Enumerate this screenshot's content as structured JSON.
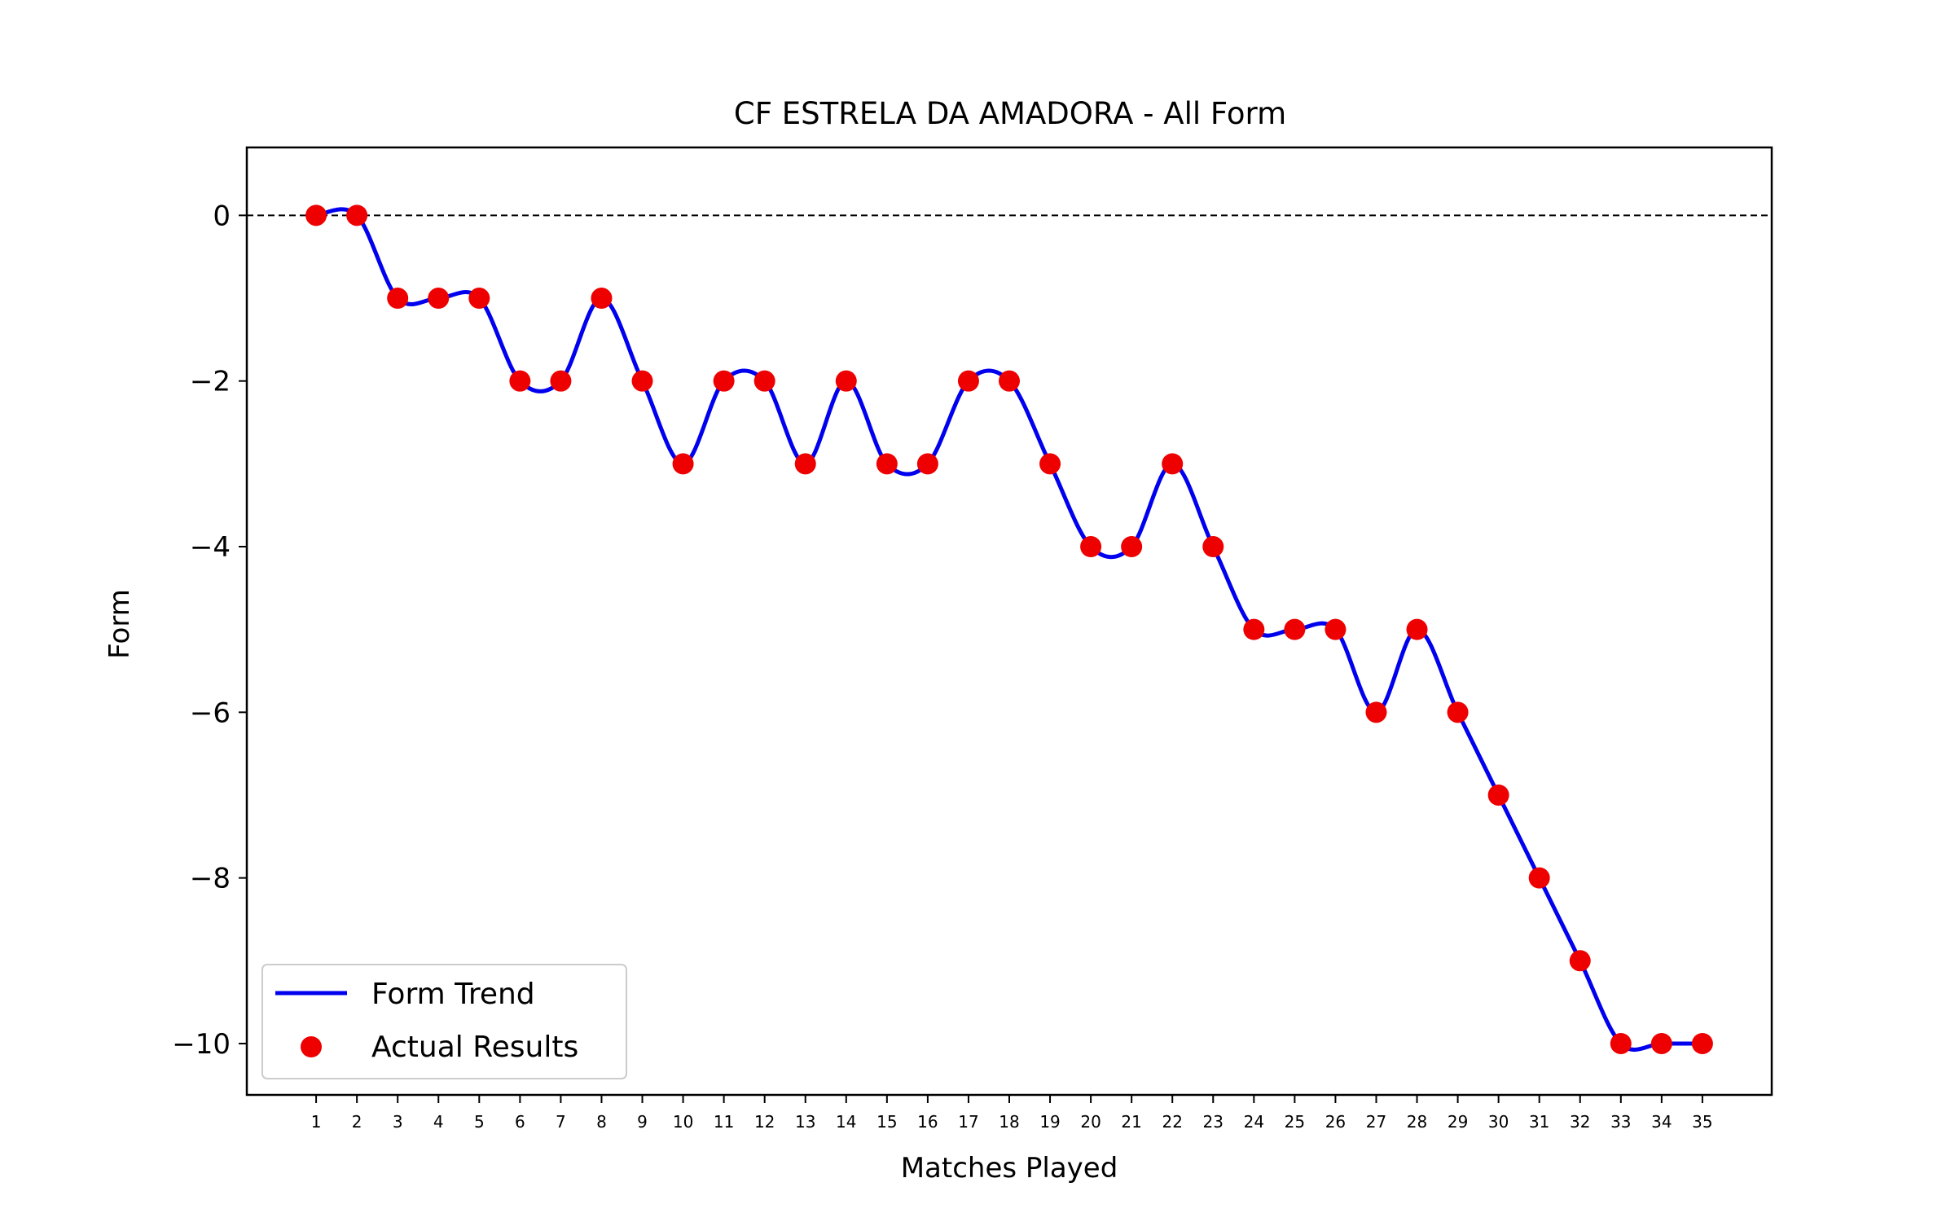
{
  "chart_data": {
    "type": "line",
    "title": "CF ESTRELA DA AMADORA - All Form",
    "xlabel": "Matches Played",
    "ylabel": "Form",
    "x": [
      1,
      2,
      3,
      4,
      5,
      6,
      7,
      8,
      9,
      10,
      11,
      12,
      13,
      14,
      15,
      16,
      17,
      18,
      19,
      20,
      21,
      22,
      23,
      24,
      25,
      26,
      27,
      28,
      29,
      30,
      31,
      32,
      33,
      34,
      35
    ],
    "xticks": [
      "1",
      "2",
      "3",
      "4",
      "5",
      "6",
      "7",
      "8",
      "9",
      "10",
      "11",
      "12",
      "13",
      "14",
      "15",
      "16",
      "17",
      "18",
      "19",
      "20",
      "21",
      "22",
      "23",
      "24",
      "25",
      "26",
      "27",
      "28",
      "29",
      "30",
      "31",
      "32",
      "33",
      "34",
      "35"
    ],
    "xlim": [
      -0.7,
      36.7
    ],
    "ylim": [
      -10.62,
      0.82
    ],
    "yticks": [
      0,
      -2,
      -4,
      -6,
      -8,
      -10
    ],
    "ytick_labels": [
      "0",
      "−2",
      "−4",
      "−6",
      "−8",
      "−10"
    ],
    "reference_line": {
      "y": 0,
      "style": "dashed",
      "color": "#000000"
    },
    "series": [
      {
        "name": "Form Trend",
        "kind": "line",
        "color": "#0000ee",
        "smooth": true,
        "values": [
          0,
          0,
          -1,
          -1,
          -1,
          -2,
          -2,
          -1,
          -2,
          -3,
          -2,
          -2,
          -3,
          -2,
          -3,
          -3,
          -2,
          -2,
          -3,
          -4,
          -4,
          -3,
          -4,
          -5,
          -5,
          -5,
          -6,
          -5,
          -6,
          -7,
          -8,
          -9,
          -10,
          -10,
          -10
        ]
      },
      {
        "name": "Actual Results",
        "kind": "scatter",
        "color": "#ee0000",
        "values": [
          0,
          0,
          -1,
          -1,
          -1,
          -2,
          -2,
          -1,
          -2,
          -3,
          -2,
          -2,
          -3,
          -2,
          -3,
          -3,
          -2,
          -2,
          -3,
          -4,
          -4,
          -3,
          -4,
          -5,
          -5,
          -5,
          -6,
          -5,
          -6,
          -7,
          -8,
          -9,
          -10,
          -10,
          -10
        ]
      }
    ],
    "legend": {
      "position": "lower-left",
      "entries": [
        "Form Trend",
        "Actual Results"
      ]
    },
    "grid": false
  }
}
